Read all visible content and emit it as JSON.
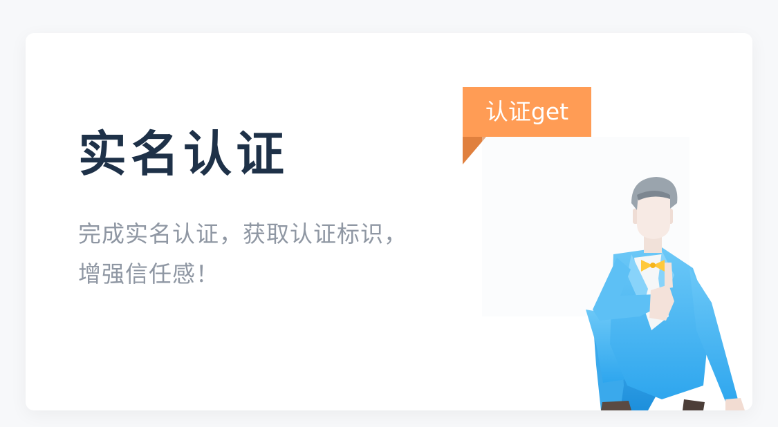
{
  "card": {
    "title": "实名认证",
    "description_lines": [
      "完成实名认证，获取认证标识，",
      "增强信任感！"
    ],
    "badge_label": "认证get",
    "illustration": "thumbs-up-man-illustration"
  },
  "colors": {
    "title": "#1e3148",
    "description": "#8f97a3",
    "badge": "#ff9c55",
    "suit": "#4bb8f2"
  }
}
